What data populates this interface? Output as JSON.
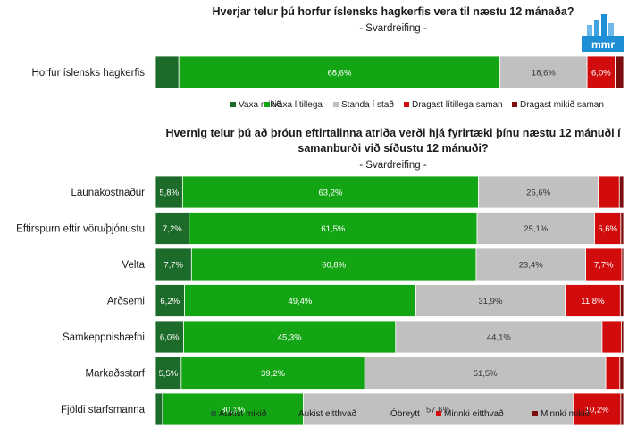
{
  "logo": {
    "text": "mmr",
    "bg": "#1e8fd6"
  },
  "chart_data": [
    {
      "type": "bar",
      "orientation": "horizontal",
      "stacked": true,
      "title": "Hverjar telur þú horfur íslensks hagkerfis vera til næstu 12 mánaða?",
      "subtitle": "- Svardreifing -",
      "categories": [
        "Horfur íslensks hagkerfis"
      ],
      "series": [
        {
          "name": "Vaxa mikið",
          "color": "#1d6b2a",
          "values": [
            5.0
          ],
          "labels": [
            ""
          ]
        },
        {
          "name": "Vaxa lítillega",
          "color": "#14a514",
          "values": [
            68.6
          ],
          "labels": [
            "68,6%"
          ]
        },
        {
          "name": "Standa í stað",
          "color": "#c0c0c0",
          "values": [
            18.6
          ],
          "labels": [
            "18,6%"
          ]
        },
        {
          "name": "Dragast lítillega saman",
          "color": "#d20c0c",
          "values": [
            6.0
          ],
          "labels": [
            "6,0%"
          ]
        },
        {
          "name": "Dragast mikið saman",
          "color": "#7b0d0d",
          "values": [
            1.8
          ],
          "labels": [
            ""
          ]
        }
      ],
      "legend_position": "bottom",
      "xlim": [
        0,
        100
      ]
    },
    {
      "type": "bar",
      "orientation": "horizontal",
      "stacked": true,
      "title_line1": "Hvernig telur þú að þróun eftirtalinna atriða verði hjá fyrirtæki þínu næstu 12 mánuði í",
      "title_line2": "samanburði við síðustu 12 mánuði?",
      "subtitle": "- Svardreifing -",
      "categories": [
        "Launakostnaður",
        "Eftirspurn eftir vöru/þjónustu",
        "Velta",
        "Arðsemi",
        "Samkeppnishæfni",
        "Markaðsstarf",
        "Fjöldi starfsmanna"
      ],
      "series": [
        {
          "name": "Aukist  mikið",
          "color": "#1d6b2a",
          "values": [
            5.8,
            7.2,
            7.7,
            6.2,
            6.0,
            5.5,
            1.5
          ],
          "labels": [
            "5,8%",
            "7,2%",
            "7,7%",
            "6,2%",
            "6,0%",
            "5,5%",
            ""
          ]
        },
        {
          "name": "Aukist  eitthvað",
          "color": "#14a514",
          "values": [
            63.2,
            61.5,
            60.8,
            49.4,
            45.3,
            39.2,
            30.1
          ],
          "labels": [
            "63,2%",
            "61,5%",
            "60,8%",
            "49,4%",
            "45,3%",
            "39,2%",
            "30,1%"
          ]
        },
        {
          "name": "Óbreytt",
          "color": "#c0c0c0",
          "values": [
            25.6,
            25.1,
            23.4,
            31.9,
            44.1,
            51.5,
            57.6
          ],
          "labels": [
            "25,6%",
            "25,1%",
            "23,4%",
            "31,9%",
            "44,1%",
            "51,5%",
            "57,6%"
          ]
        },
        {
          "name": "Minnki  eitthvað",
          "color": "#d20c0c",
          "values": [
            4.5,
            5.6,
            7.7,
            11.8,
            4.1,
            3.0,
            10.2
          ],
          "labels": [
            "",
            "5,6%",
            "7,7%",
            "11,8%",
            "",
            "",
            "10,2%"
          ]
        },
        {
          "name": "Minnki  mikið",
          "color": "#7b0d0d",
          "values": [
            0.9,
            0.6,
            0.4,
            0.7,
            0.5,
            0.8,
            0.6
          ],
          "labels": [
            "",
            "",
            "",
            "",
            "",
            "",
            ""
          ]
        }
      ],
      "legend_position": "bottom",
      "xlim": [
        0,
        100
      ]
    }
  ]
}
